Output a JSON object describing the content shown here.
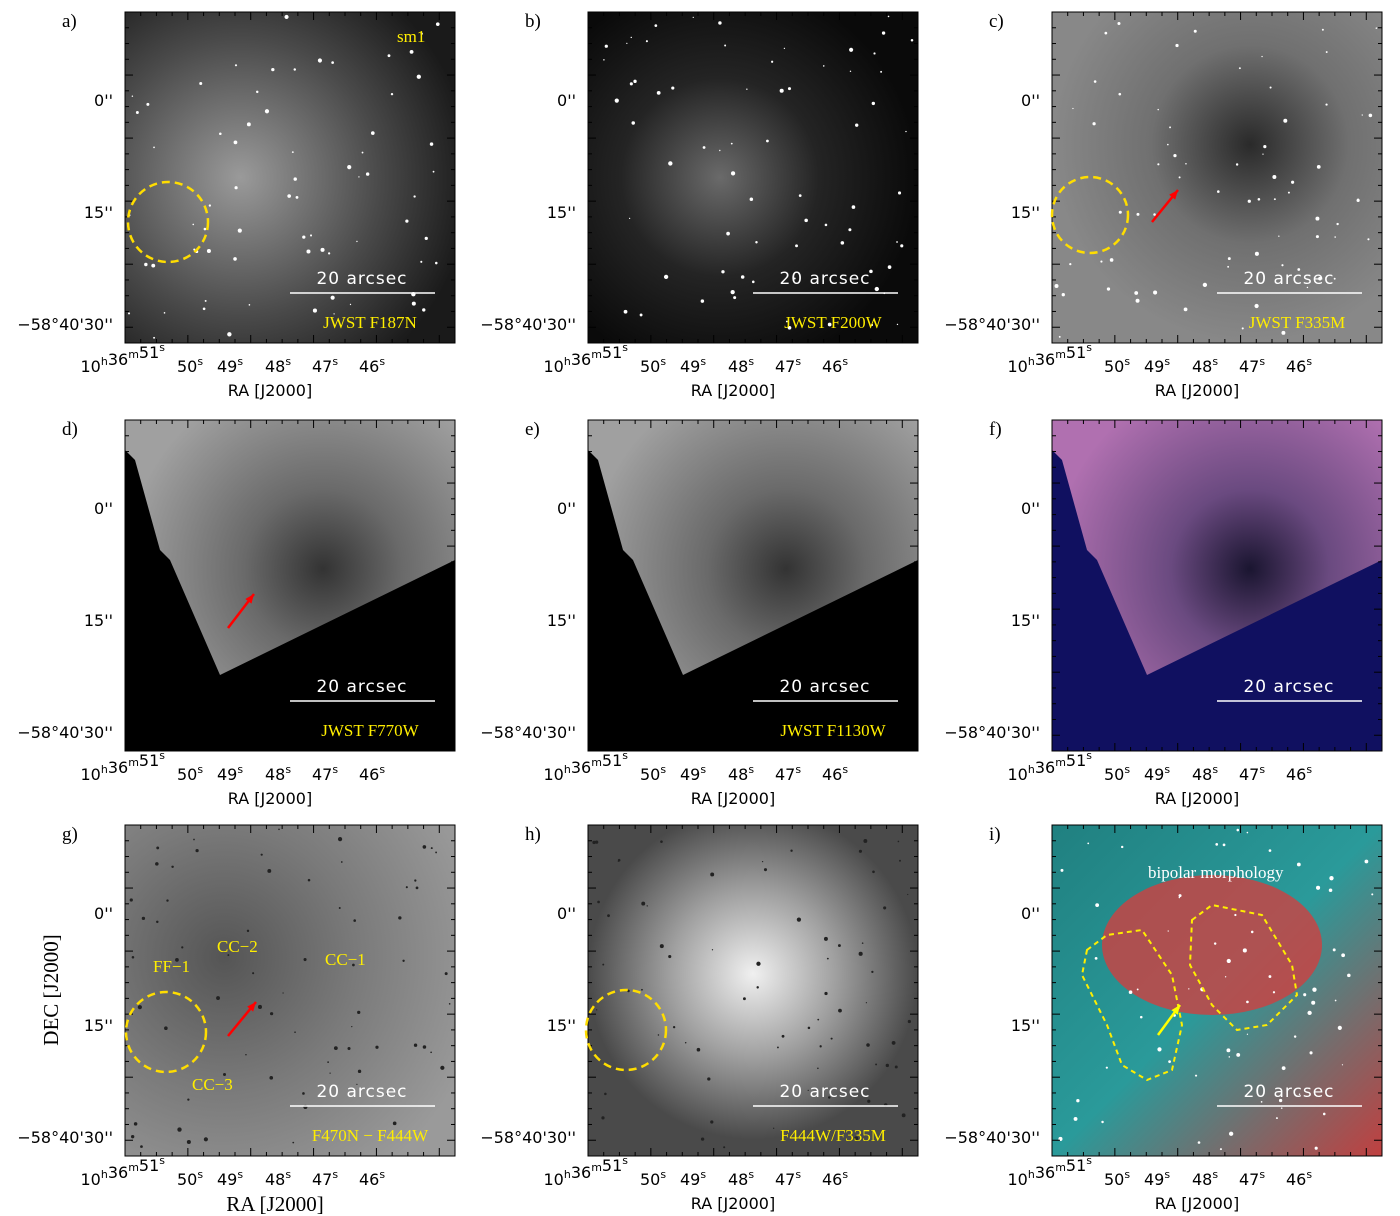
{
  "panels": [
    {
      "label": "a)",
      "filter": "JWST F187N",
      "scale": "20 arcsec",
      "annotations": [
        "sm1"
      ]
    },
    {
      "label": "b)",
      "filter": "JWST F200W",
      "scale": "20 arcsec",
      "annotations": []
    },
    {
      "label": "c)",
      "filter": "JWST F335M",
      "scale": "20 arcsec",
      "annotations": []
    },
    {
      "label": "d)",
      "filter": "JWST F770W",
      "scale": "20 arcsec",
      "annotations": []
    },
    {
      "label": "e)",
      "filter": "JWST F1130W",
      "scale": "20 arcsec",
      "annotations": []
    },
    {
      "label": "f)",
      "scale": "20 arcsec",
      "annotations": []
    },
    {
      "label": "g)",
      "filter": "F470N − F444W",
      "scale": "20 arcsec",
      "annotations": [
        "CC−2",
        "CC−1",
        "FF−1",
        "CC−3"
      ]
    },
    {
      "label": "h)",
      "filter": "F444W/F335M",
      "scale": "20 arcsec",
      "annotations": []
    },
    {
      "label": "i)",
      "scale": "20 arcsec",
      "annotations": [
        "bipolar morphology"
      ]
    }
  ],
  "yticks": [
    "0''",
    "15''",
    "−58°40'30''"
  ],
  "xticks": [
    [
      [
        "10",
        "h"
      ],
      [
        "36",
        "m"
      ],
      [
        "51",
        "s"
      ]
    ],
    [
      [
        "50",
        "s"
      ]
    ],
    [
      [
        "49",
        "s"
      ]
    ],
    [
      [
        "48",
        "s"
      ]
    ],
    [
      [
        "47",
        "s"
      ]
    ],
    [
      [
        "46",
        "s"
      ]
    ]
  ],
  "xlabel": "RA [J2000]",
  "ylabel": "DEC [J2000]"
}
